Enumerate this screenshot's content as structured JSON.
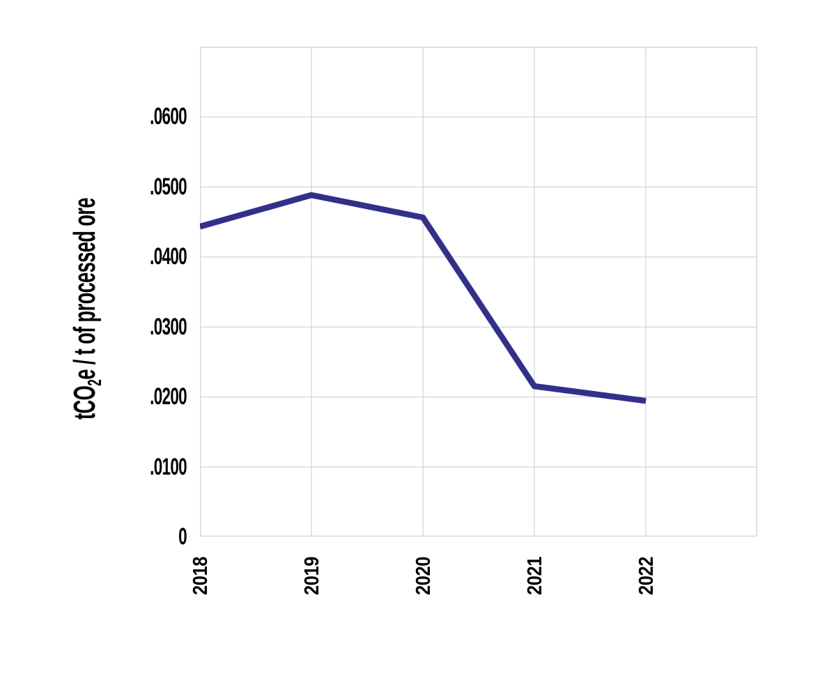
{
  "chart_data": {
    "type": "line",
    "title": "",
    "xlabel": "",
    "ylabel": "tCO2e / t of processed ore",
    "ylabel_parts": {
      "prefix": "tCO",
      "sub": "2",
      "suffix": "e / t of processed ore"
    },
    "categories": [
      "2018",
      "2019",
      "2020",
      "2021",
      "2022"
    ],
    "values": [
      0.0443,
      0.0488,
      0.0456,
      0.0215,
      0.0194
    ],
    "ylim": [
      0,
      0.07
    ],
    "ytick_step": 0.01,
    "ytick_labels": [
      "0",
      ".0100",
      ".0200",
      ".0300",
      ".0400",
      ".0500",
      ".0600"
    ],
    "grid": "on",
    "legend": "none",
    "line_color": "#333089",
    "grid_color": "#c9c9c9",
    "border_color": "#d9d9d9",
    "text_color": "#000000"
  }
}
